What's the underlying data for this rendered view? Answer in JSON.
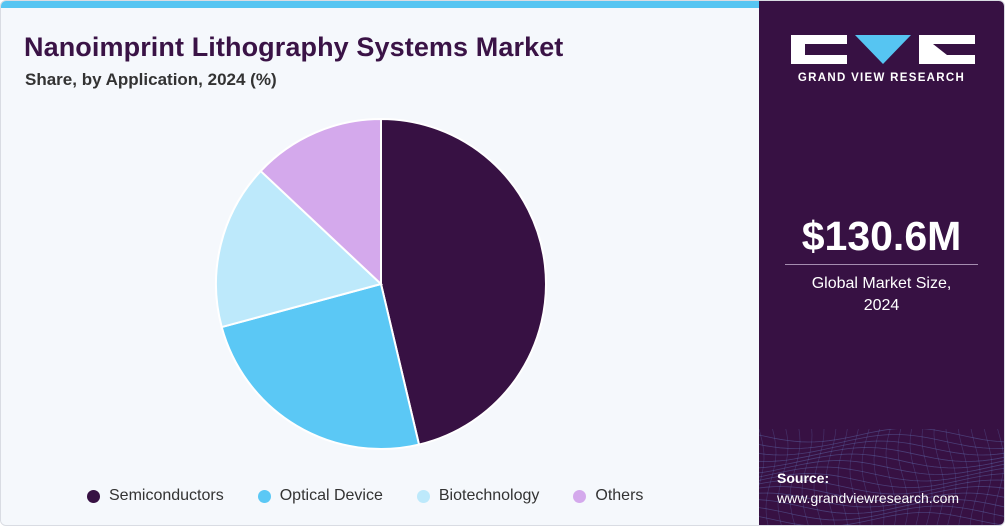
{
  "header": {
    "title": "Nanoimprint Lithography Systems Market",
    "subtitle": "Share, by Application, 2024 (%)"
  },
  "colors": {
    "semiconductors": "#371143",
    "optical_device": "#5bc8f5",
    "biotechnology": "#bde9fb",
    "others": "#d4a9ec",
    "panel": "#371143",
    "accent": "#56c5f2"
  },
  "chart_data": {
    "type": "pie",
    "title": "Nanoimprint Lithography Systems Market",
    "subtitle": "Share, by Application, 2024 (%)",
    "categories": [
      "Semiconductors",
      "Optical Device",
      "Biotechnology",
      "Others"
    ],
    "values": [
      46.3,
      24.5,
      16.2,
      13.0
    ],
    "colors": [
      "#371143",
      "#5bc8f5",
      "#bde9fb",
      "#d4a9ec"
    ],
    "start_angle_deg": 0,
    "direction": "clockwise",
    "legend_position": "bottom"
  },
  "sidebar": {
    "brand": "GRAND VIEW RESEARCH",
    "market_value": "$130.6M",
    "market_caption_line1": "Global Market Size,",
    "market_caption_line2": "2024",
    "source_label": "Source:",
    "source_url": "www.grandviewresearch.com"
  }
}
